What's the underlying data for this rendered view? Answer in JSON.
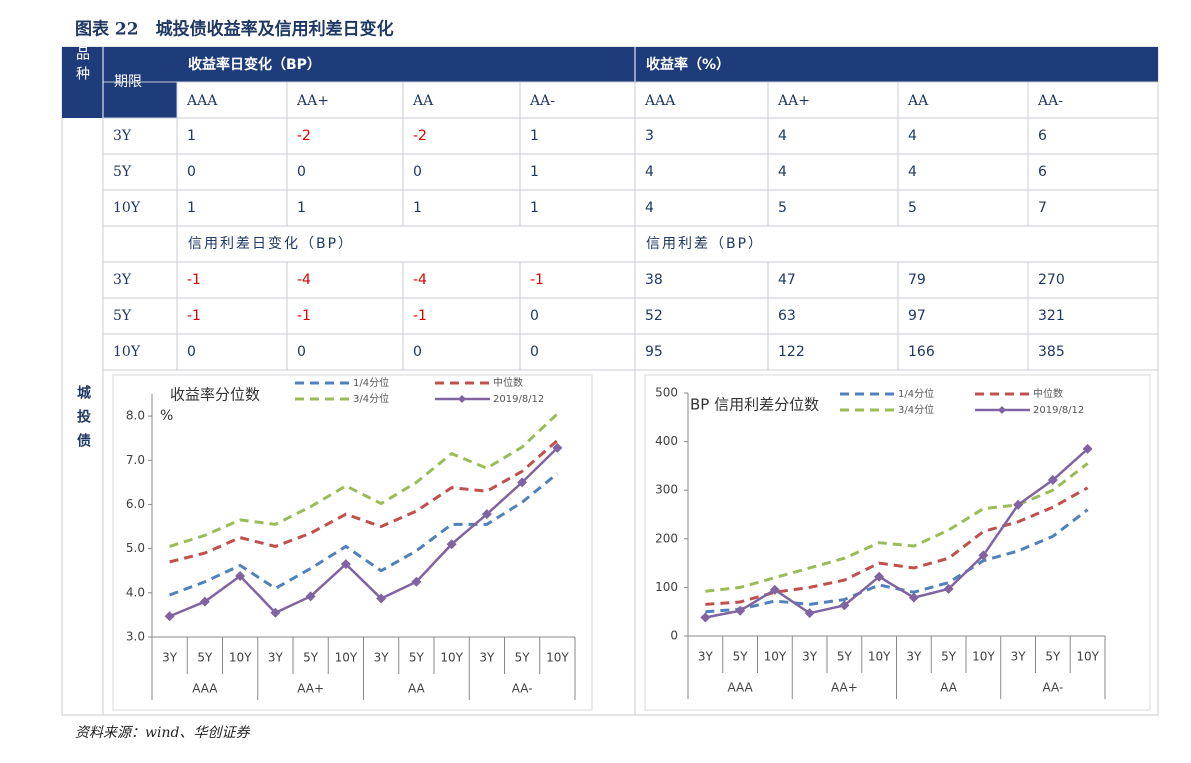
{
  "title": "图表 22　城投债收益率及信用利差日变化",
  "source": "资料来源：wind、华创证券",
  "table": {
    "corner": "品种",
    "period": "期限",
    "category": "城投债",
    "groups": [
      "收益率日变化（BP）",
      "收益率（%）"
    ],
    "ratings": [
      "AAA",
      "AA+",
      "AA",
      "AA-"
    ],
    "subgroups": [
      "信用利差日变化（BP）",
      "信用利差（BP）"
    ],
    "yield_rows": [
      [
        "3Y",
        1,
        -2,
        -2,
        1,
        3,
        4,
        4,
        6
      ],
      [
        "5Y",
        0,
        0,
        0,
        1,
        4,
        4,
        4,
        6
      ],
      [
        "10Y",
        1,
        1,
        1,
        1,
        4,
        5,
        5,
        7
      ]
    ],
    "spread_rows": [
      [
        "3Y",
        -1,
        -4,
        -4,
        -1,
        38,
        47,
        79,
        270
      ],
      [
        "5Y",
        -1,
        -1,
        -1,
        0,
        52,
        63,
        97,
        321
      ],
      [
        "10Y",
        0,
        0,
        0,
        0,
        95,
        122,
        166,
        385
      ]
    ]
  },
  "chart_data": [
    {
      "type": "line",
      "title": "收益率分位数",
      "y_label": "%",
      "categories": [
        "3Y",
        "5Y",
        "10Y",
        "3Y",
        "5Y",
        "10Y",
        "3Y",
        "5Y",
        "10Y",
        "3Y",
        "5Y",
        "10Y"
      ],
      "groups": [
        "AAA",
        "AA+",
        "AA",
        "AA-"
      ],
      "ylim": [
        3,
        8.5
      ],
      "yticks": [
        {
          "value": 3,
          "label": "3.0"
        },
        {
          "value": 4,
          "label": "4.0"
        },
        {
          "value": 5,
          "label": "5.0"
        },
        {
          "value": 6,
          "label": "6.0"
        },
        {
          "value": 7,
          "label": "7.0"
        },
        {
          "value": 8,
          "label": "8.0"
        }
      ],
      "series": [
        {
          "name": "1/4分位",
          "color": "#4f81bd",
          "dashed": true,
          "values": [
            3.95,
            4.25,
            4.62,
            4.1,
            4.55,
            5.05,
            4.5,
            4.95,
            5.55,
            5.55,
            6.05,
            6.7
          ]
        },
        {
          "name": "中位数",
          "color": "#c0504d",
          "dashed": true,
          "values": [
            4.7,
            4.9,
            5.25,
            5.05,
            5.35,
            5.78,
            5.5,
            5.85,
            6.38,
            6.3,
            6.75,
            7.45
          ]
        },
        {
          "name": "3/4分位",
          "color": "#9bbb59",
          "dashed": true,
          "values": [
            5.05,
            5.3,
            5.65,
            5.55,
            5.95,
            6.42,
            6.02,
            6.5,
            7.15,
            6.82,
            7.3,
            8.05
          ]
        },
        {
          "name": "2019/8/12",
          "color": "#8064a2",
          "marker": "diamond",
          "values": [
            3.47,
            3.8,
            4.38,
            3.55,
            3.92,
            4.65,
            3.87,
            4.25,
            5.1,
            5.78,
            6.5,
            7.28
          ]
        }
      ]
    },
    {
      "type": "line",
      "title": "BP 信用利差分位数",
      "categories": [
        "3Y",
        "5Y",
        "10Y",
        "3Y",
        "5Y",
        "10Y",
        "3Y",
        "5Y",
        "10Y",
        "3Y",
        "5Y",
        "10Y"
      ],
      "groups": [
        "AAA",
        "AA+",
        "AA",
        "AA-"
      ],
      "ylim": [
        0,
        500
      ],
      "yticks": [
        0,
        100,
        200,
        300,
        400,
        500
      ],
      "series": [
        {
          "name": "1/4分位",
          "color": "#4f81bd",
          "dashed": true,
          "values": [
            50,
            55,
            72,
            65,
            75,
            105,
            90,
            110,
            155,
            175,
            205,
            260
          ]
        },
        {
          "name": "中位数",
          "color": "#c0504d",
          "dashed": true,
          "values": [
            65,
            70,
            90,
            100,
            115,
            150,
            140,
            160,
            215,
            235,
            265,
            305
          ]
        },
        {
          "name": "3/4分位",
          "color": "#9bbb59",
          "dashed": true,
          "values": [
            92,
            100,
            120,
            140,
            160,
            192,
            185,
            218,
            262,
            270,
            300,
            355
          ]
        },
        {
          "name": "2019/8/12",
          "color": "#8064a2",
          "marker": "diamond",
          "values": [
            38,
            52,
            95,
            47,
            63,
            122,
            79,
            97,
            166,
            270,
            321,
            385
          ]
        }
      ]
    }
  ]
}
